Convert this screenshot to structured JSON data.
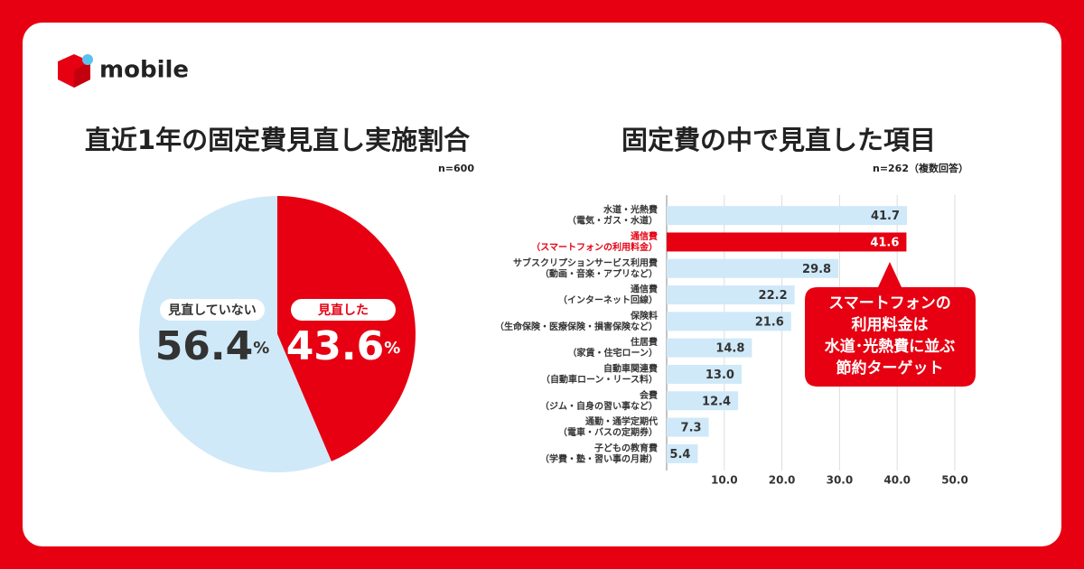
{
  "brand": "mobile",
  "chart_data": [
    {
      "type": "pie",
      "title": "直近1年の固定費見直し実施割合",
      "note": "n=600",
      "categories": [
        "見直していない",
        "見直した"
      ],
      "values": [
        56.4,
        43.6
      ],
      "value_labels": [
        "56.4%",
        "43.6%"
      ],
      "colors": [
        "#cfe9f8",
        "#e60012"
      ]
    },
    {
      "type": "hbar",
      "title": "固定費の中で見直した項目",
      "note": "n=262（複数回答）",
      "categories": [
        [
          "水道・光熱費",
          "（電気・ガス・水道）"
        ],
        [
          "通信費",
          "（スマートフォンの利用料金）"
        ],
        [
          "サブスクリプションサービス利用費",
          "（動画・音楽・アプリなど）"
        ],
        [
          "通信費",
          "（インターネット回線）"
        ],
        [
          "保険料",
          "（生命保険・医療保険・損害保険など）"
        ],
        [
          "住居費",
          "（家賃・住宅ローン）"
        ],
        [
          "自動車関連費",
          "（自動車ローン・リース料）"
        ],
        [
          "会費",
          "（ジム・自身の習い事など）"
        ],
        [
          "通勤・通学定期代",
          "（電車・バスの定期券）"
        ],
        [
          "子どもの教育費",
          "（学費・塾・習い事の月謝）"
        ]
      ],
      "values": [
        41.7,
        41.6,
        29.8,
        22.2,
        21.6,
        14.8,
        13.0,
        12.4,
        7.3,
        5.4
      ],
      "value_labels": [
        "41.7",
        "41.6",
        "29.8",
        "22.2",
        "21.6",
        "14.8",
        "13.0",
        "12.4",
        "7.3",
        "5.4"
      ],
      "colors": [
        "#cfe9f8",
        "#e60012",
        "#cfe9f8",
        "#cfe9f8",
        "#cfe9f8",
        "#cfe9f8",
        "#cfe9f8",
        "#cfe9f8",
        "#cfe9f8",
        "#cfe9f8"
      ],
      "xlim": [
        0,
        50
      ],
      "xticks": [
        {
          "value": 10,
          "label": "10.0"
        },
        {
          "value": 20,
          "label": "20.0"
        },
        {
          "value": 30,
          "label": "30.0"
        },
        {
          "value": 40,
          "label": "40.0"
        },
        {
          "value": 50,
          "label": "50.0"
        }
      ],
      "grid": true,
      "annotation": [
        "スマートフォンの",
        "利用料金は",
        "水道･光熱費に並ぶ",
        "節約ターゲット"
      ]
    }
  ]
}
